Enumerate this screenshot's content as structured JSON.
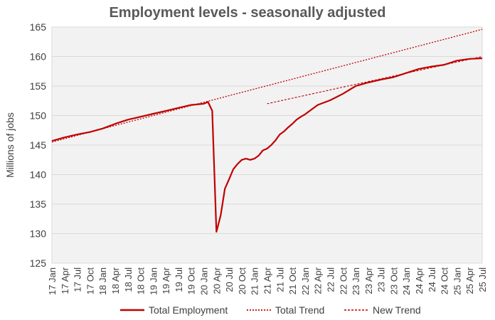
{
  "chart_data": {
    "type": "line",
    "title": "Employment levels - seasonally adjusted",
    "ylabel": "Millions of jobs",
    "ylim": [
      125,
      165
    ],
    "yticks": [
      125,
      130,
      135,
      140,
      145,
      150,
      155,
      160,
      165
    ],
    "grid": true,
    "legend_position": "bottom",
    "x_tick_labels": [
      "17 Jan",
      "17 Apr",
      "17 Jul",
      "17 Oct",
      "18 Jan",
      "18 Apr",
      "18 Jul",
      "18 Oct",
      "19 Jan",
      "19 Apr",
      "19 Jul",
      "19 Oct",
      "20 Jan",
      "20 Apr",
      "20 Jul",
      "20 Oct",
      "21 Jan",
      "21 Apr",
      "21 Jul",
      "21 Oct",
      "22 Jan",
      "22 Apr",
      "22 Jul",
      "22 Oct",
      "23 Jan",
      "23 Apr",
      "23 Jul",
      "23 Oct",
      "24 Jan",
      "24 Apr",
      "24 Jul",
      "24 Oct",
      "25 Jan",
      "25 Apr",
      "25 Jul"
    ],
    "series": [
      {
        "name": "Total Employment",
        "style": "solid",
        "color": "#c00000",
        "x": [
          "2017-01",
          "2017-04",
          "2017-07",
          "2017-10",
          "2018-01",
          "2018-04",
          "2018-07",
          "2018-10",
          "2019-01",
          "2019-04",
          "2019-07",
          "2019-10",
          "2020-01",
          "2020-02",
          "2020-03",
          "2020-04",
          "2020-05",
          "2020-06",
          "2020-07",
          "2020-08",
          "2020-09",
          "2020-10",
          "2020-11",
          "2020-12",
          "2021-01",
          "2021-02",
          "2021-03",
          "2021-04",
          "2021-05",
          "2021-06",
          "2021-07",
          "2021-08",
          "2021-09",
          "2021-10",
          "2021-11",
          "2021-12",
          "2022-01",
          "2022-04",
          "2022-07",
          "2022-10",
          "2023-01",
          "2023-04",
          "2023-07",
          "2023-10",
          "2024-01",
          "2024-04",
          "2024-07",
          "2024-10",
          "2025-01",
          "2025-04",
          "2025-07"
        ],
        "values": [
          145.7,
          146.3,
          146.8,
          147.2,
          147.8,
          148.6,
          149.3,
          149.8,
          150.3,
          150.8,
          151.3,
          151.8,
          152.0,
          152.3,
          150.8,
          130.3,
          133.1,
          137.6,
          139.2,
          140.9,
          141.8,
          142.5,
          142.7,
          142.5,
          142.7,
          143.2,
          144.1,
          144.4,
          145.0,
          145.8,
          146.8,
          147.3,
          148.0,
          148.6,
          149.3,
          149.8,
          150.2,
          151.8,
          152.6,
          153.7,
          155.0,
          155.6,
          156.1,
          156.5,
          157.2,
          157.9,
          158.3,
          158.6,
          159.3,
          159.6,
          159.7
        ]
      },
      {
        "name": "Total Trend",
        "style": "dotted",
        "color": "#c00000",
        "x": [
          "2017-01",
          "2025-07"
        ],
        "values": [
          145.5,
          164.6
        ]
      },
      {
        "name": "New Trend",
        "style": "dashed",
        "color": "#c00000",
        "x": [
          "2021-04",
          "2025-07"
        ],
        "values": [
          152.0,
          160.0
        ]
      }
    ]
  }
}
